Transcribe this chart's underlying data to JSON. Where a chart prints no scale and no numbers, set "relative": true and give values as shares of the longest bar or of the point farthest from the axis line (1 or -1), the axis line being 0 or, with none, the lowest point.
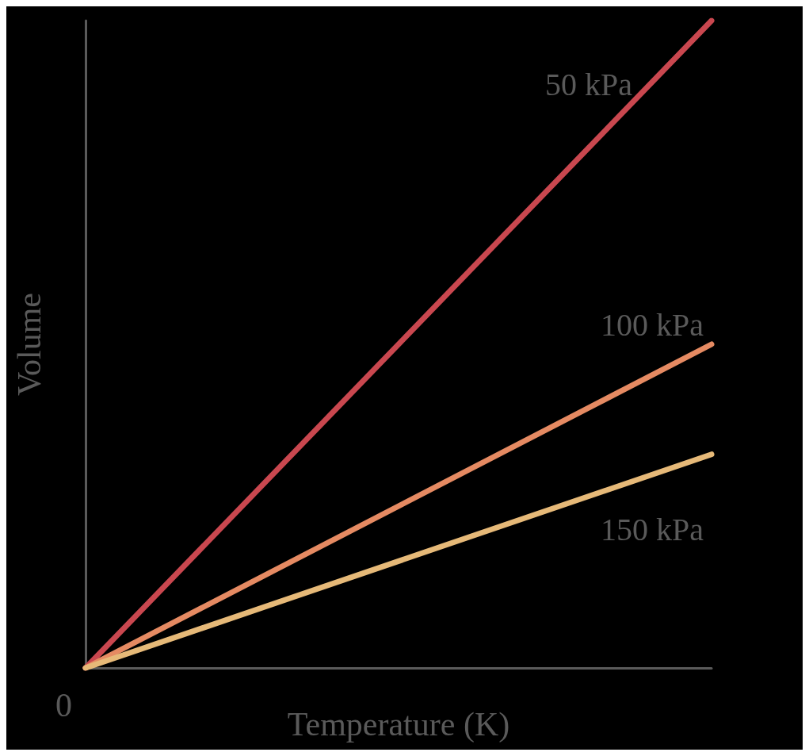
{
  "chart_data": {
    "type": "line",
    "relative": true,
    "xlabel": "Temperature (K)",
    "ylabel": "Volume",
    "categories": [
      null,
      null
    ],
    "annotations": [
      "0"
    ],
    "grid": false,
    "legend": false,
    "marker": "none",
    "line_style": "solid",
    "series": [
      {
        "name": "50 kPa",
        "color": "#c9474f",
        "values": [
          0,
          1
        ]
      },
      {
        "name": "100 kPa",
        "color": "#e58a62",
        "values": [
          0,
          0.5
        ]
      },
      {
        "name": "150 kPa",
        "color": "#e6b978",
        "values": [
          0,
          0.33
        ]
      }
    ]
  }
}
